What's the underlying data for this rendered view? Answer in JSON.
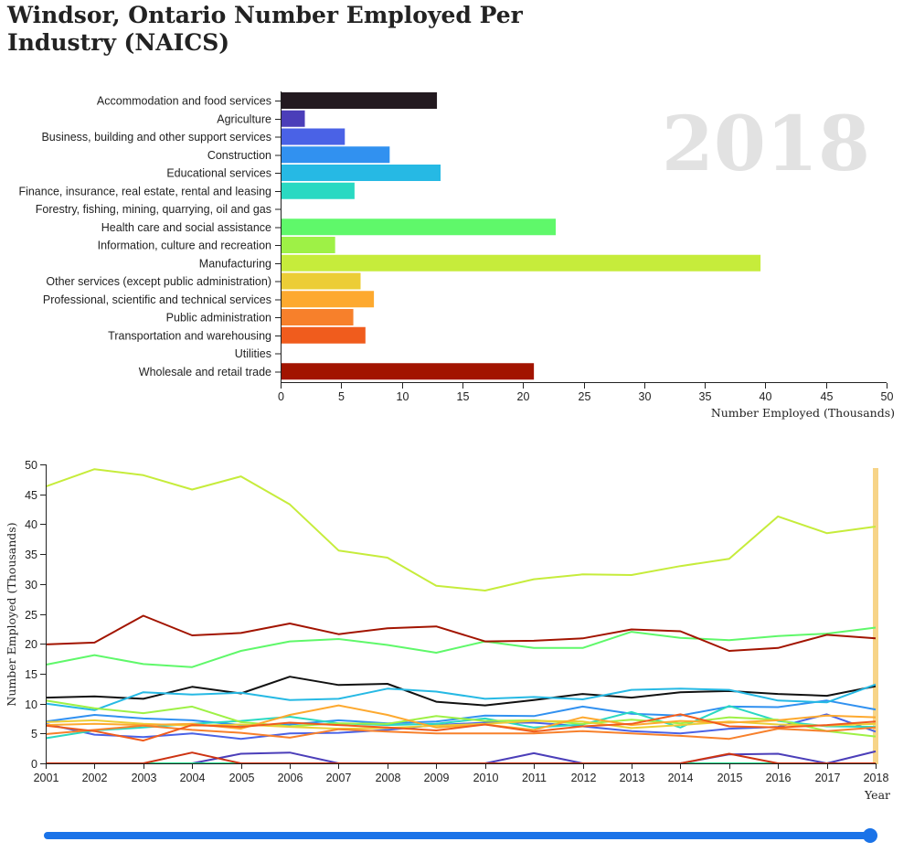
{
  "page": {
    "title": "Windsor, Ontario Number Employed Per Industry (NAICS)"
  },
  "chart_data": [
    {
      "type": "bar",
      "orientation": "horizontal",
      "year_label": "2018",
      "xlabel": "Number Employed (Thousands)",
      "xlim": [
        0,
        50
      ],
      "xticks": [
        0,
        5,
        10,
        15,
        20,
        25,
        30,
        35,
        40,
        45,
        50
      ],
      "grid": false,
      "categories": [
        "Accommodation and food services",
        "Agriculture",
        "Business, building and other support services",
        "Construction",
        "Educational services",
        "Finance, insurance, real estate, rental and leasing",
        "Forestry, fishing, mining, quarrying, oil and gas",
        "Health care and social assistance",
        "Information, culture and recreation",
        "Manufacturing",
        "Other services (except public administration)",
        "Professional, scientific and technical services",
        "Public administration",
        "Transportation and warehousing",
        "Utilities",
        "Wholesale and retail trade"
      ],
      "values": [
        12.9,
        2.0,
        5.3,
        9.0,
        13.2,
        6.1,
        0,
        22.7,
        4.5,
        39.6,
        6.6,
        7.7,
        6.0,
        7.0,
        0,
        20.9
      ],
      "colors": [
        "#231a20",
        "#4b3eb9",
        "#4a62e6",
        "#3191f0",
        "#26b9e4",
        "#2ad9c2",
        "#21dc8a",
        "#5ff86a",
        "#9ef146",
        "#c6ec3b",
        "#eccd36",
        "#fda92f",
        "#f7802b",
        "#f05c1d",
        "#cd3211",
        "#a21400"
      ]
    },
    {
      "type": "line",
      "ylabel": "Number Employed (Thousands)",
      "xlabel": "Year",
      "x": [
        2001,
        2002,
        2003,
        2004,
        2005,
        2006,
        2007,
        2008,
        2009,
        2010,
        2011,
        2012,
        2013,
        2014,
        2015,
        2016,
        2017,
        2018
      ],
      "xlim": [
        2001,
        2018
      ],
      "ylim": [
        0,
        50
      ],
      "yticks": [
        0,
        5,
        10,
        15,
        20,
        25,
        30,
        35,
        40,
        45,
        50
      ],
      "grid": false,
      "highlight_year": 2018,
      "highlight_color": "#f7d488",
      "series": [
        {
          "color": "#111111",
          "values": [
            11.0,
            11.2,
            10.8,
            12.8,
            11.7,
            14.5,
            13.1,
            13.3,
            10.3,
            9.7,
            10.6,
            11.6,
            11.0,
            11.9,
            12.1,
            11.6,
            11.3,
            12.9
          ]
        },
        {
          "color": "#4b3eb9",
          "values": [
            0,
            0,
            0,
            0,
            1.6,
            1.8,
            0,
            0,
            0,
            0,
            1.7,
            0,
            0,
            0,
            1.5,
            1.6,
            0,
            2.0
          ]
        },
        {
          "color": "#4a62e6",
          "values": [
            6.6,
            4.8,
            4.4,
            5.0,
            4.1,
            5.0,
            5.1,
            5.6,
            6.4,
            6.8,
            6.8,
            6.2,
            5.4,
            5.0,
            5.8,
            6.1,
            8.2,
            5.3
          ]
        },
        {
          "color": "#3191f0",
          "values": [
            7.0,
            8.1,
            7.5,
            7.2,
            6.4,
            6.5,
            7.2,
            6.7,
            7.0,
            8.0,
            7.9,
            9.5,
            8.3,
            8.0,
            9.5,
            9.4,
            10.5,
            9.0
          ]
        },
        {
          "color": "#26b9e4",
          "values": [
            10.0,
            8.9,
            11.9,
            11.5,
            11.8,
            10.6,
            10.8,
            12.5,
            12.0,
            10.8,
            11.1,
            10.7,
            12.3,
            12.5,
            12.3,
            10.5,
            10.2,
            13.2
          ]
        },
        {
          "color": "#2ad9c2",
          "values": [
            4.2,
            5.5,
            6.0,
            6.6,
            7.1,
            7.8,
            6.7,
            6.4,
            6.6,
            7.5,
            6.0,
            6.5,
            8.6,
            6.0,
            9.6,
            7.1,
            6.2,
            6.1
          ]
        },
        {
          "color": "#21dc8a",
          "values": [
            0,
            0,
            0,
            0,
            0,
            0,
            0,
            0,
            0,
            0,
            0,
            0,
            0,
            0,
            0,
            0,
            0,
            0
          ]
        },
        {
          "color": "#5ff86a",
          "values": [
            16.5,
            18.1,
            16.6,
            16.1,
            18.8,
            20.4,
            20.8,
            19.8,
            18.5,
            20.4,
            19.3,
            19.3,
            22.0,
            21.0,
            20.6,
            21.3,
            21.7,
            22.7
          ]
        },
        {
          "color": "#9ef146",
          "values": [
            10.5,
            9.2,
            8.4,
            9.5,
            6.9,
            6.2,
            6.7,
            6.6,
            7.9,
            7.1,
            7.2,
            6.6,
            7.3,
            6.7,
            7.7,
            7.3,
            5.4,
            4.5
          ]
        },
        {
          "color": "#c6ec3b",
          "values": [
            46.3,
            49.2,
            48.2,
            45.8,
            48.0,
            43.3,
            35.6,
            34.4,
            29.7,
            28.9,
            30.8,
            31.6,
            31.5,
            33.0,
            34.2,
            41.3,
            38.5,
            39.6
          ]
        },
        {
          "color": "#eccd36",
          "values": [
            6.9,
            7.2,
            6.6,
            6.3,
            6.5,
            6.1,
            5.8,
            5.9,
            6.3,
            6.6,
            7.1,
            7.0,
            5.9,
            6.4,
            7.0,
            6.5,
            6.3,
            6.6
          ]
        },
        {
          "color": "#fda92f",
          "values": [
            6.4,
            6.6,
            6.4,
            6.6,
            5.8,
            8.1,
            9.7,
            8.1,
            6.0,
            6.5,
            5.6,
            7.7,
            6.4,
            7.1,
            6.8,
            7.2,
            8.0,
            7.7
          ]
        },
        {
          "color": "#f7802b",
          "values": [
            4.9,
            5.6,
            6.3,
            5.6,
            5.1,
            4.3,
            5.7,
            5.3,
            5.0,
            5.0,
            5.0,
            5.4,
            5.0,
            4.6,
            4.1,
            5.8,
            5.4,
            6.0
          ]
        },
        {
          "color": "#f05c1d",
          "values": [
            6.3,
            5.4,
            3.8,
            6.4,
            6.1,
            6.8,
            6.4,
            6.0,
            5.5,
            6.5,
            5.3,
            6.2,
            6.6,
            8.2,
            6.2,
            6.0,
            6.4,
            7.0
          ]
        },
        {
          "color": "#cd3211",
          "values": [
            0,
            0,
            0,
            1.8,
            0,
            0,
            0,
            0,
            0,
            0,
            0,
            0,
            0,
            0,
            1.6,
            0,
            0,
            0
          ]
        },
        {
          "color": "#a21400",
          "values": [
            19.9,
            20.2,
            24.7,
            21.4,
            21.8,
            23.4,
            21.6,
            22.6,
            22.9,
            20.4,
            20.5,
            20.9,
            22.4,
            22.1,
            18.8,
            19.3,
            21.5,
            20.9
          ]
        }
      ]
    }
  ],
  "slider": {
    "min": 2001,
    "max": 2018,
    "value": 2018
  }
}
